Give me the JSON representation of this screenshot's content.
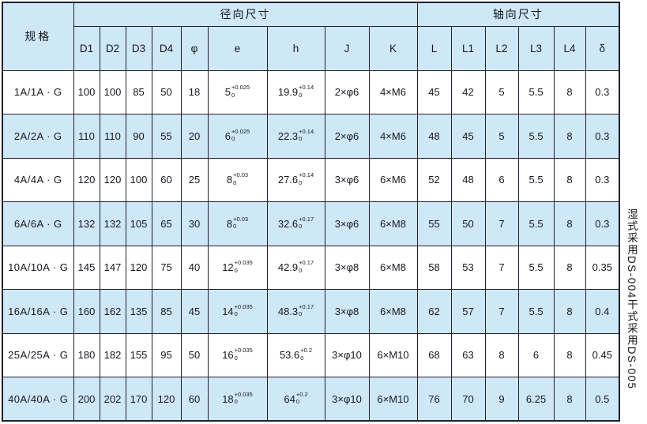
{
  "table": {
    "spec_header": "规格",
    "groups": {
      "radial": "径向尺寸",
      "axial": "轴向尺寸"
    },
    "columns": [
      "D1",
      "D2",
      "D3",
      "D4",
      "φ",
      "e",
      "h",
      "J",
      "K",
      "L",
      "L1",
      "L2",
      "L3",
      "L4",
      "δ"
    ],
    "rows": [
      {
        "spec": "1A/1A · G",
        "d1": "100",
        "d2": "100",
        "d3": "85",
        "d4": "50",
        "phi": "18",
        "e": {
          "base": "5",
          "sup": "+0.025",
          "sub": "0"
        },
        "h": {
          "base": "19.9",
          "sup": "+0.14",
          "sub": "0"
        },
        "j": "2×φ6",
        "k": "4×M6",
        "l": "45",
        "l1": "42",
        "l2": "5",
        "l3": "5.5",
        "l4": "8",
        "delta": "0.3"
      },
      {
        "spec": "2A/2A · G",
        "d1": "110",
        "d2": "110",
        "d3": "90",
        "d4": "55",
        "phi": "20",
        "e": {
          "base": "6",
          "sup": "+0.025",
          "sub": "0"
        },
        "h": {
          "base": "22.3",
          "sup": "+0.14",
          "sub": "0"
        },
        "j": "2×φ6",
        "k": "4×M6",
        "l": "48",
        "l1": "45",
        "l2": "5",
        "l3": "5.5",
        "l4": "8",
        "delta": "0.3"
      },
      {
        "spec": "4A/4A · G",
        "d1": "120",
        "d2": "120",
        "d3": "100",
        "d4": "60",
        "phi": "25",
        "e": {
          "base": "8",
          "sup": "+0.03",
          "sub": "0"
        },
        "h": {
          "base": "27.6",
          "sup": "+0.14",
          "sub": "0"
        },
        "j": "3×φ6",
        "k": "6×M6",
        "l": "52",
        "l1": "48",
        "l2": "6",
        "l3": "5.5",
        "l4": "8",
        "delta": "0.3"
      },
      {
        "spec": "6A/6A · G",
        "d1": "132",
        "d2": "132",
        "d3": "105",
        "d4": "65",
        "phi": "30",
        "e": {
          "base": "8",
          "sup": "+0.03",
          "sub": "0"
        },
        "h": {
          "base": "32.6",
          "sup": "+0.17",
          "sub": "0"
        },
        "j": "3×φ6",
        "k": "6×M8",
        "l": "55",
        "l1": "50",
        "l2": "7",
        "l3": "5.5",
        "l4": "8",
        "delta": "0.3"
      },
      {
        "spec": "10A/10A · G",
        "d1": "145",
        "d2": "147",
        "d3": "120",
        "d4": "75",
        "phi": "40",
        "e": {
          "base": "12",
          "sup": "+0.035",
          "sub": "0"
        },
        "h": {
          "base": "42.9",
          "sup": "+0.17",
          "sub": "0"
        },
        "j": "3×φ8",
        "k": "6×M8",
        "l": "58",
        "l1": "53",
        "l2": "7",
        "l3": "5.5",
        "l4": "8",
        "delta": "0.35"
      },
      {
        "spec": "16A/16A · G",
        "d1": "160",
        "d2": "162",
        "d3": "135",
        "d4": "85",
        "phi": "45",
        "e": {
          "base": "14",
          "sup": "+0.035",
          "sub": "0"
        },
        "h": {
          "base": "48.3",
          "sup": "+0.17",
          "sub": "0"
        },
        "j": "3×φ8",
        "k": "6×M8",
        "l": "62",
        "l1": "57",
        "l2": "7",
        "l3": "5.5",
        "l4": "8",
        "delta": "0.4"
      },
      {
        "spec": "25A/25A · G",
        "d1": "180",
        "d2": "182",
        "d3": "155",
        "d4": "95",
        "phi": "50",
        "e": {
          "base": "16",
          "sup": "+0.035",
          "sub": "0"
        },
        "h": {
          "base": "53.6",
          "sup": "+0.2",
          "sub": "0"
        },
        "j": "3×φ10",
        "k": "6×M10",
        "l": "68",
        "l1": "63",
        "l2": "8",
        "l3": "6",
        "l4": "8",
        "delta": "0.45"
      },
      {
        "spec": "40A/40A · G",
        "d1": "200",
        "d2": "202",
        "d3": "170",
        "d4": "120",
        "phi": "60",
        "e": {
          "base": "18",
          "sup": "+0.035",
          "sub": "0"
        },
        "h": {
          "base": "64",
          "sup": "+0.2",
          "sub": "0"
        },
        "j": "3×φ10",
        "k": "6×M10",
        "l": "76",
        "l1": "70",
        "l2": "9",
        "l3": "6.25",
        "l4": "8",
        "delta": "0.5"
      }
    ]
  },
  "side_note": "湿式采用DS-004干式采用DS-005",
  "colors": {
    "row_alt": "#cfe8f8",
    "border": "#20202e"
  }
}
